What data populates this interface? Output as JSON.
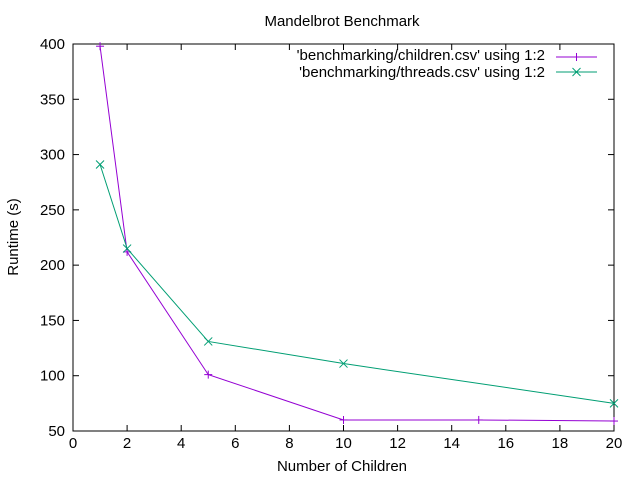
{
  "chart_data": {
    "type": "line",
    "title": "Mandelbrot Benchmark",
    "xlabel": "Number of Children",
    "ylabel": "Runtime (s)",
    "xlim": [
      0,
      20
    ],
    "ylim": [
      50,
      400
    ],
    "xticks": [
      0,
      2,
      4,
      6,
      8,
      10,
      12,
      14,
      16,
      18,
      20
    ],
    "yticks": [
      50,
      100,
      150,
      200,
      250,
      300,
      350,
      400
    ],
    "grid": false,
    "legend_position": "top-right",
    "series": [
      {
        "name": "'benchmarking/children.csv' using 1:2",
        "color": "#9400d3",
        "marker": "plus",
        "x": [
          1,
          2,
          5,
          10,
          15,
          20
        ],
        "y": [
          398,
          212,
          101,
          60,
          60,
          59
        ]
      },
      {
        "name": "'benchmarking/threads.csv' using 1:2",
        "color": "#009e73",
        "marker": "cross",
        "x": [
          1,
          2,
          5,
          10,
          20
        ],
        "y": [
          291,
          215,
          131,
          111,
          75
        ]
      }
    ]
  }
}
